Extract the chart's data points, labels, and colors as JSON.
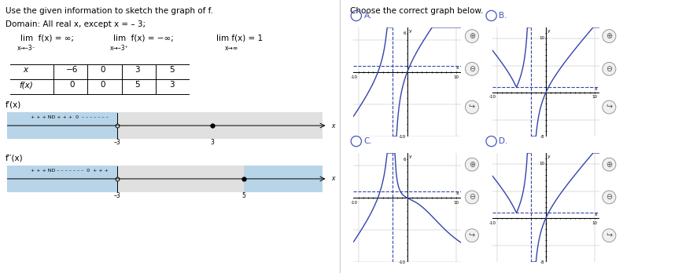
{
  "title_left": "Use the given information to sketch the graph of f.",
  "title_right": "Choose the correct graph below.",
  "domain_text": "Domain: All real x, except x = – 3;",
  "bg_blue": "#b8d4e8",
  "bg_gray": "#e0e0e0",
  "curve_color": "#3344aa",
  "dashed_color": "#3344aa",
  "grid_color": "#bbbbbb",
  "radio_color": "#4455bb",
  "graphs": {
    "A": {
      "y_range": [
        -10,
        7
      ],
      "x_range": [
        -11,
        11
      ],
      "ytick_top": 6,
      "ytick_bot": -10,
      "xtick_l": -10,
      "xtick_r": 10
    },
    "B": {
      "y_range": [
        -8,
        12
      ],
      "x_range": [
        -11,
        11
      ],
      "ytick_top": 10,
      "ytick_bot": -8,
      "xtick_l": -10,
      "xtick_r": 10
    },
    "C": {
      "y_range": [
        -10,
        7
      ],
      "x_range": [
        -11,
        11
      ],
      "ytick_top": 6,
      "ytick_bot": -10,
      "xtick_l": -10,
      "xtick_r": 10
    },
    "D": {
      "y_range": [
        -8,
        12
      ],
      "x_range": [
        -11,
        11
      ],
      "ytick_top": 10,
      "ytick_bot": -8,
      "xtick_l": -10,
      "xtick_r": 10
    }
  }
}
